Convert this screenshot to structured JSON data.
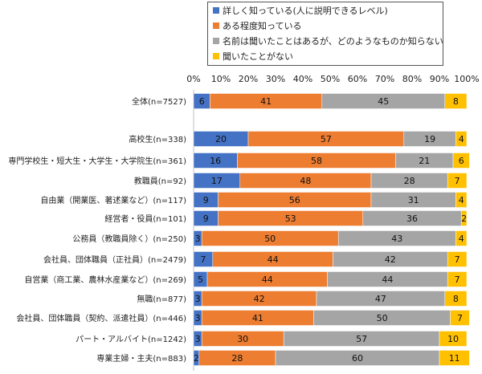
{
  "chart_data": {
    "type": "bar",
    "orientation": "horizontal",
    "stacked": true,
    "percent": true,
    "xlim": [
      0,
      100
    ],
    "x_ticks": [
      "0%",
      "10%",
      "20%",
      "30%",
      "40%",
      "50%",
      "60%",
      "70%",
      "80%",
      "90%",
      "100%"
    ],
    "grid": false,
    "legend_position": "top",
    "categories": [
      "全体(n=7527)",
      "高校生(n=338)",
      "専門学校生・短大生・大学生・大学院生(n=361)",
      "教職員(n=92)",
      "自由業（開業医、著述業など）(n=117)",
      "経営者・役員(n=101)",
      "公務員（教職員除く）(n=250)",
      "会社員、団体職員（正社員）(n=2479)",
      "自営業（商工業、農林水産業など）(n=269)",
      "無職(n=877)",
      "会社員、団体職員（契約、派遣社員）(n=446)",
      "パート・アルバイト(n=1242)",
      "専業主婦・主夫(n=883)"
    ],
    "series": [
      {
        "name": "詳しく知っている(人に説明できるレベル)",
        "color": "#4472C4",
        "values": [
          6,
          20,
          16,
          17,
          9,
          9,
          3,
          7,
          5,
          3,
          3,
          3,
          2
        ]
      },
      {
        "name": "ある程度知っている",
        "color": "#ED7D31",
        "values": [
          41,
          57,
          58,
          48,
          56,
          53,
          50,
          44,
          44,
          42,
          41,
          30,
          28
        ]
      },
      {
        "name": "名前は聞いたことはあるが、どのようなものか知らない",
        "color": "#A5A5A5",
        "values": [
          45,
          19,
          21,
          28,
          31,
          36,
          43,
          42,
          44,
          47,
          50,
          57,
          60
        ]
      },
      {
        "name": "聞いたことがない",
        "color": "#FFC000",
        "values": [
          8,
          4,
          6,
          7,
          4,
          2,
          4,
          7,
          7,
          8,
          7,
          10,
          11
        ]
      }
    ]
  }
}
